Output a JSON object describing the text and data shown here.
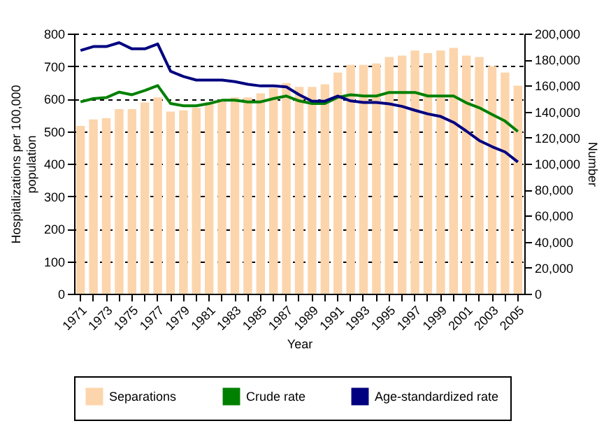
{
  "chart_data": {
    "type": "bar",
    "xlabel": "Year",
    "ylabel": "Hospitalizations per 100,000 population",
    "y2label": "Number",
    "categories": [
      "1971",
      null,
      "1973",
      null,
      "1975",
      null,
      "1977",
      null,
      "1979",
      null,
      "1981",
      null,
      "1983",
      null,
      "1985",
      null,
      "1987",
      null,
      "1989",
      null,
      "1991",
      null,
      "1993",
      null,
      "1995",
      null,
      "1997",
      null,
      "1999",
      null,
      "2001",
      null,
      "2003",
      null,
      "2005"
    ],
    "series": [
      {
        "name": "Separations",
        "axis": "y2",
        "color": "#fcd5ac",
        "values": [
          129000,
          134000,
          135000,
          142000,
          142000,
          147000,
          151000,
          140000,
          141000,
          143000,
          147000,
          149000,
          151000,
          151000,
          154000,
          158000,
          162000,
          159000,
          159000,
          161000,
          170000,
          176000,
          176000,
          177000,
          182000,
          183000,
          187000,
          185000,
          187000,
          189000,
          183000,
          182000,
          175000,
          170000,
          160000
        ]
      },
      {
        "name": "Crude rate",
        "type": "line",
        "color": "#008000",
        "values": [
          590,
          600,
          603,
          620,
          612,
          625,
          640,
          585,
          578,
          578,
          585,
          595,
          595,
          590,
          590,
          600,
          608,
          593,
          585,
          585,
          604,
          612,
          608,
          608,
          619,
          619,
          619,
          608,
          608,
          608,
          587,
          572,
          551,
          531,
          499
        ]
      },
      {
        "name": "Age-standardized rate",
        "type": "line",
        "color": "#000080",
        "values": [
          748,
          760,
          760,
          772,
          753,
          753,
          768,
          684,
          668,
          657,
          657,
          657,
          652,
          644,
          639,
          639,
          636,
          612,
          592,
          592,
          608,
          593,
          588,
          588,
          584,
          576,
          564,
          553,
          545,
          527,
          500,
          471,
          452,
          436,
          405
        ]
      }
    ],
    "ylim": [
      0,
      800
    ],
    "yticks": [
      0,
      100,
      200,
      300,
      400,
      500,
      600,
      700,
      800
    ],
    "y2lim": [
      0,
      200000
    ],
    "y2ticks": [
      0,
      {
        "value": 20000,
        "label": "20,000"
      },
      {
        "value": 40000,
        "label": "40,000"
      },
      {
        "value": 60000,
        "label": "60,000"
      },
      {
        "value": 80000,
        "label": "80,000"
      },
      {
        "value": 100000,
        "label": "100,000"
      },
      {
        "value": 120000,
        "label": "120,000"
      },
      {
        "value": 140000,
        "label": "140,000"
      },
      {
        "value": 160000,
        "label": "160,000"
      },
      {
        "value": 180000,
        "label": "180,000"
      },
      {
        "value": 200000,
        "label": "200,000"
      }
    ],
    "grid": "y",
    "legend": "bottom",
    "marker": "none",
    "line_style": "solid"
  }
}
